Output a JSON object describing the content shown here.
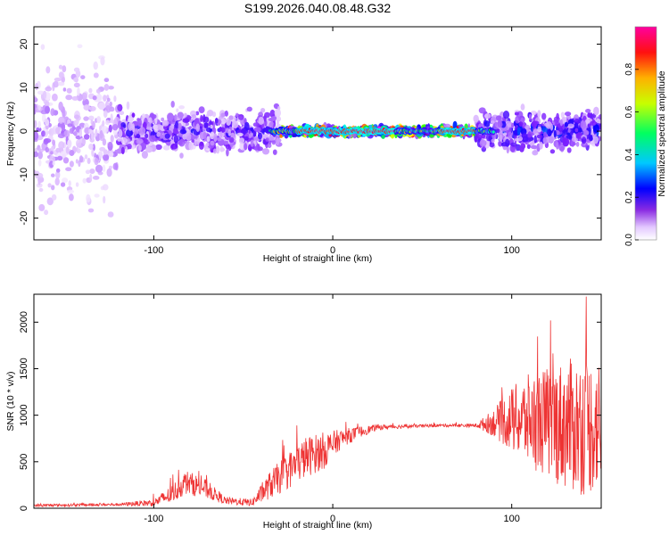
{
  "title": "S199.2026.040.08.48.G32",
  "chart_data": [
    {
      "type": "heatmap",
      "xlabel": "Height of straight line (km)",
      "ylabel": "Frequency (Hz)",
      "xlim": [
        -167,
        150
      ],
      "ylim": [
        -25,
        24
      ],
      "xticks": [
        -100,
        0,
        100
      ],
      "yticks": [
        -20,
        -10,
        0,
        10,
        20
      ],
      "colorbar": {
        "label": "Normalized spectral amplitude",
        "range": [
          0,
          1
        ],
        "ticks": [
          0.0,
          0.2,
          0.4,
          0.6,
          0.8
        ],
        "colors": [
          "#ffffff",
          "#d9b3ff",
          "#7a1bff",
          "#0000ff",
          "#00ffff",
          "#00ff00",
          "#ffff00",
          "#ff0000",
          "#ff00ff"
        ]
      },
      "description_bands": [
        {
          "x_range": [
            -167,
            -120
          ],
          "freq_spread": 24,
          "amplitude": 0.15
        },
        {
          "x_range": [
            -120,
            -30
          ],
          "freq_spread": 8,
          "amplitude": 0.25
        },
        {
          "x_range": [
            -30,
            80
          ],
          "freq_spread": 1.5,
          "amplitude": 0.8
        },
        {
          "x_range": [
            80,
            150
          ],
          "freq_spread": 7,
          "amplitude": 0.3
        }
      ]
    },
    {
      "type": "line",
      "xlabel": "Height of straight line (km)",
      "ylabel": "SNR (10 * v/v)",
      "xlim": [
        -167,
        150
      ],
      "ylim": [
        0,
        2300
      ],
      "xticks": [
        -100,
        0,
        100
      ],
      "yticks": [
        0,
        500,
        1000,
        1500,
        2000
      ],
      "color": "#ee3333",
      "envelope": {
        "x": [
          -167,
          -120,
          -100,
          -90,
          -82,
          -72,
          -60,
          -45,
          -35,
          -25,
          -15,
          -5,
          5,
          15,
          25,
          40,
          60,
          80,
          90,
          100,
          110,
          120,
          130,
          140,
          150
        ],
        "y": [
          30,
          40,
          60,
          150,
          280,
          220,
          80,
          60,
          250,
          400,
          550,
          620,
          750,
          820,
          870,
          880,
          890,
          890,
          920,
          950,
          950,
          920,
          900,
          880,
          900
        ],
        "spread": [
          15,
          15,
          40,
          100,
          130,
          110,
          40,
          40,
          150,
          200,
          220,
          200,
          100,
          60,
          30,
          20,
          15,
          20,
          150,
          350,
          500,
          600,
          700,
          750,
          700
        ]
      }
    }
  ]
}
